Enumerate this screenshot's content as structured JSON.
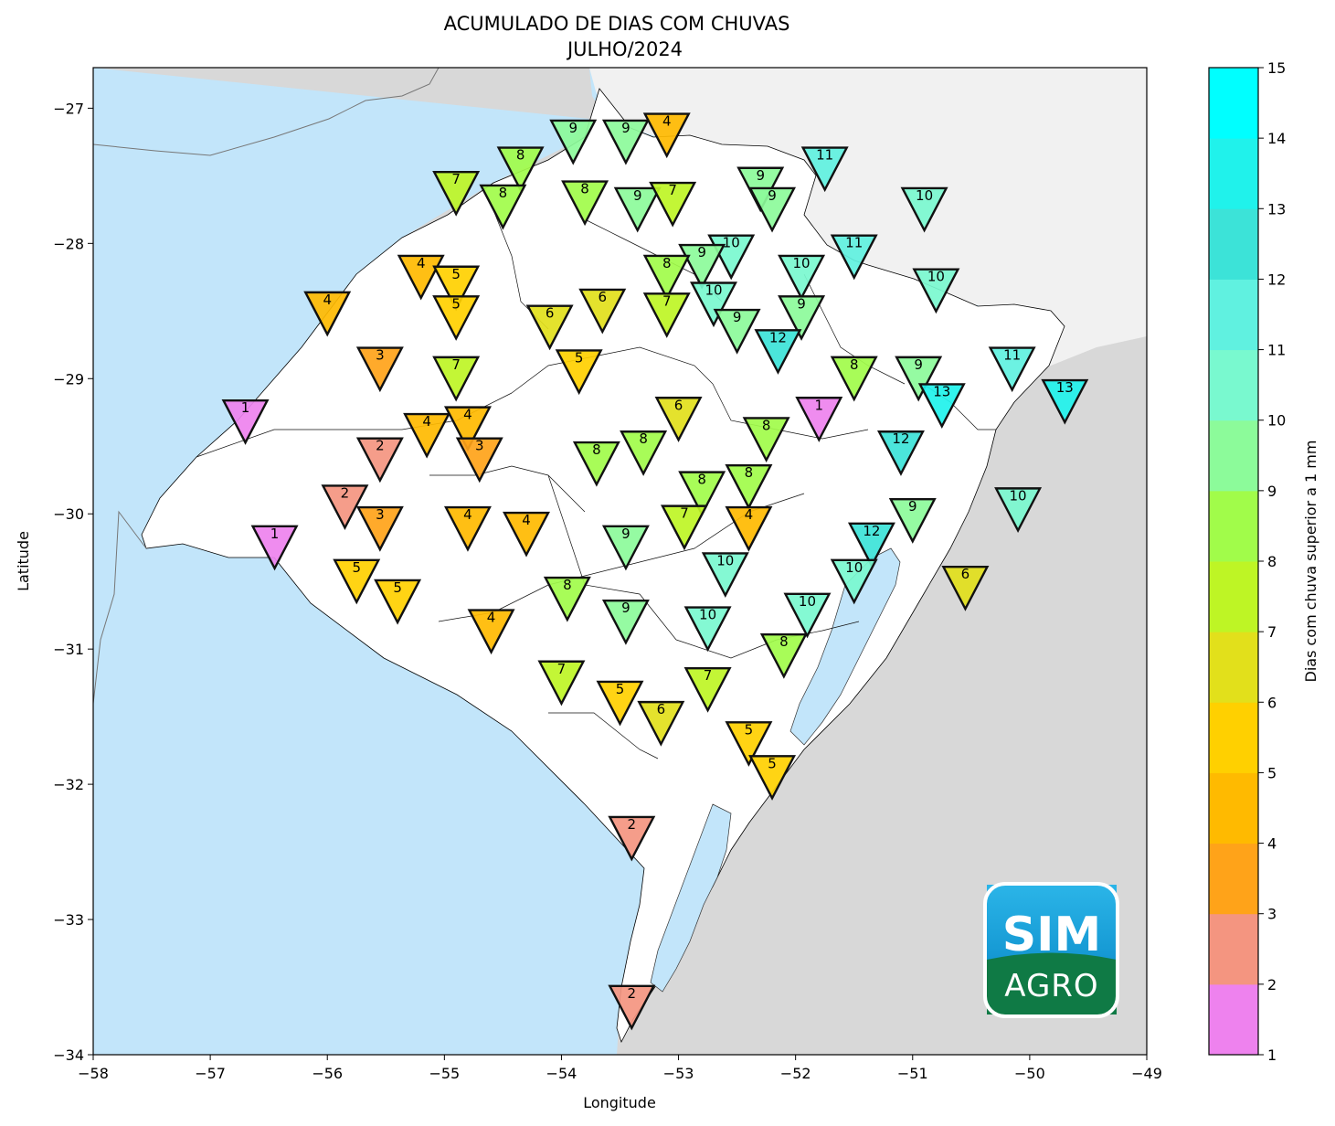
{
  "title": "ACUMULADO DE DIAS COM CHUVAS",
  "subtitle": "JULHO/2024",
  "colorbar_label": "Dias com chuva superior a 1 mm",
  "logo": {
    "line1": "SIM",
    "line2": "AGRO"
  },
  "colors": {
    "ocean": "#c2e5fa",
    "foreign_land": "#d8d8d8",
    "brazil_land": "#f1f1f1",
    "state_land": "#ffffff"
  },
  "chart_data": {
    "type": "scatter",
    "title": "ACUMULADO DE DIAS COM CHUVAS",
    "subtitle": "JULHO/2024",
    "xlabel": "Longitude",
    "ylabel": "Latitude",
    "xlim": [
      -58,
      -49
    ],
    "ylim": [
      -34,
      -26.7
    ],
    "xticks": [
      "−58",
      "−57",
      "−56",
      "−55",
      "−54",
      "−53",
      "−52",
      "−51",
      "−50",
      "−49"
    ],
    "yticks": [
      "−27",
      "−28",
      "−29",
      "−30",
      "−31",
      "−32",
      "−33",
      "−34"
    ],
    "colorbar": {
      "label": "Dias com chuva superior a 1 mm",
      "ticks": [
        "1",
        "2",
        "3",
        "4",
        "5",
        "6",
        "7",
        "8",
        "9",
        "10",
        "11",
        "12",
        "13",
        "14",
        "15"
      ],
      "colors": [
        "#ee82ee",
        "#f49580",
        "#ffa319",
        "#ffba00",
        "#ffd000",
        "#e2e01b",
        "#bef525",
        "#a1fc4a",
        "#8cfb9a",
        "#79f9cf",
        "#60f1e0",
        "#3ce3d8",
        "#20f2eb",
        "#00ffff"
      ]
    },
    "points": [
      {
        "lon": -53.9,
        "lat": -27.2,
        "value": 9
      },
      {
        "lon": -53.45,
        "lat": -27.2,
        "value": 9
      },
      {
        "lon": -53.1,
        "lat": -27.15,
        "value": 4
      },
      {
        "lon": -54.35,
        "lat": -27.4,
        "value": 8
      },
      {
        "lon": -51.75,
        "lat": -27.4,
        "value": 11
      },
      {
        "lon": -54.9,
        "lat": -27.58,
        "value": 7
      },
      {
        "lon": -54.5,
        "lat": -27.68,
        "value": 8
      },
      {
        "lon": -53.8,
        "lat": -27.65,
        "value": 8
      },
      {
        "lon": -53.35,
        "lat": -27.7,
        "value": 9
      },
      {
        "lon": -53.05,
        "lat": -27.66,
        "value": 7
      },
      {
        "lon": -52.3,
        "lat": -27.55,
        "value": 9
      },
      {
        "lon": -52.2,
        "lat": -27.7,
        "value": 9
      },
      {
        "lon": -50.9,
        "lat": -27.7,
        "value": 10
      },
      {
        "lon": -52.55,
        "lat": -28.05,
        "value": 10
      },
      {
        "lon": -52.8,
        "lat": -28.12,
        "value": 9
      },
      {
        "lon": -53.1,
        "lat": -28.2,
        "value": 8
      },
      {
        "lon": -51.5,
        "lat": -28.05,
        "value": 11
      },
      {
        "lon": -51.95,
        "lat": -28.2,
        "value": 10
      },
      {
        "lon": -50.8,
        "lat": -28.3,
        "value": 10
      },
      {
        "lon": -55.2,
        "lat": -28.2,
        "value": 4
      },
      {
        "lon": -54.9,
        "lat": -28.28,
        "value": 5
      },
      {
        "lon": -54.9,
        "lat": -28.5,
        "value": 5
      },
      {
        "lon": -56.0,
        "lat": -28.47,
        "value": 4
      },
      {
        "lon": -53.65,
        "lat": -28.45,
        "value": 6
      },
      {
        "lon": -54.1,
        "lat": -28.57,
        "value": 6
      },
      {
        "lon": -53.1,
        "lat": -28.48,
        "value": 7
      },
      {
        "lon": -52.7,
        "lat": -28.4,
        "value": 10
      },
      {
        "lon": -51.95,
        "lat": -28.5,
        "value": 9
      },
      {
        "lon": -52.5,
        "lat": -28.6,
        "value": 9
      },
      {
        "lon": -52.15,
        "lat": -28.75,
        "value": 12
      },
      {
        "lon": -55.55,
        "lat": -28.88,
        "value": 3
      },
      {
        "lon": -53.85,
        "lat": -28.9,
        "value": 5
      },
      {
        "lon": -54.9,
        "lat": -28.95,
        "value": 7
      },
      {
        "lon": -51.5,
        "lat": -28.95,
        "value": 8
      },
      {
        "lon": -50.95,
        "lat": -28.95,
        "value": 9
      },
      {
        "lon": -50.75,
        "lat": -29.15,
        "value": 13
      },
      {
        "lon": -50.15,
        "lat": -28.88,
        "value": 11
      },
      {
        "lon": -49.7,
        "lat": -29.12,
        "value": 13
      },
      {
        "lon": -56.7,
        "lat": -29.27,
        "value": 1
      },
      {
        "lon": -55.15,
        "lat": -29.37,
        "value": 4
      },
      {
        "lon": -54.8,
        "lat": -29.32,
        "value": 4
      },
      {
        "lon": -53.0,
        "lat": -29.25,
        "value": 6
      },
      {
        "lon": -51.8,
        "lat": -29.25,
        "value": 1
      },
      {
        "lon": -52.25,
        "lat": -29.4,
        "value": 8
      },
      {
        "lon": -54.7,
        "lat": -29.55,
        "value": 3
      },
      {
        "lon": -55.55,
        "lat": -29.55,
        "value": 2
      },
      {
        "lon": -53.3,
        "lat": -29.5,
        "value": 8
      },
      {
        "lon": -53.7,
        "lat": -29.58,
        "value": 8
      },
      {
        "lon": -51.1,
        "lat": -29.5,
        "value": 12
      },
      {
        "lon": -52.4,
        "lat": -29.75,
        "value": 8
      },
      {
        "lon": -52.8,
        "lat": -29.8,
        "value": 8
      },
      {
        "lon": -50.1,
        "lat": -29.92,
        "value": 10
      },
      {
        "lon": -55.85,
        "lat": -29.9,
        "value": 2
      },
      {
        "lon": -51.0,
        "lat": -30.0,
        "value": 9
      },
      {
        "lon": -52.95,
        "lat": -30.05,
        "value": 7
      },
      {
        "lon": -52.4,
        "lat": -30.06,
        "value": 4
      },
      {
        "lon": -55.55,
        "lat": -30.06,
        "value": 3
      },
      {
        "lon": -54.8,
        "lat": -30.06,
        "value": 4
      },
      {
        "lon": -54.3,
        "lat": -30.1,
        "value": 4
      },
      {
        "lon": -56.45,
        "lat": -30.2,
        "value": 1
      },
      {
        "lon": -53.45,
        "lat": -30.2,
        "value": 9
      },
      {
        "lon": -51.35,
        "lat": -30.18,
        "value": 12
      },
      {
        "lon": -55.75,
        "lat": -30.45,
        "value": 5
      },
      {
        "lon": -55.4,
        "lat": -30.6,
        "value": 5
      },
      {
        "lon": -52.6,
        "lat": -30.4,
        "value": 10
      },
      {
        "lon": -51.5,
        "lat": -30.45,
        "value": 10
      },
      {
        "lon": -50.55,
        "lat": -30.5,
        "value": 6
      },
      {
        "lon": -53.95,
        "lat": -30.58,
        "value": 8
      },
      {
        "lon": -51.9,
        "lat": -30.7,
        "value": 10
      },
      {
        "lon": -53.45,
        "lat": -30.75,
        "value": 9
      },
      {
        "lon": -52.75,
        "lat": -30.8,
        "value": 10
      },
      {
        "lon": -54.6,
        "lat": -30.82,
        "value": 4
      },
      {
        "lon": -52.1,
        "lat": -31.0,
        "value": 8
      },
      {
        "lon": -54.0,
        "lat": -31.2,
        "value": 7
      },
      {
        "lon": -52.75,
        "lat": -31.25,
        "value": 7
      },
      {
        "lon": -53.5,
        "lat": -31.35,
        "value": 5
      },
      {
        "lon": -53.15,
        "lat": -31.5,
        "value": 6
      },
      {
        "lon": -52.4,
        "lat": -31.65,
        "value": 5
      },
      {
        "lon": -52.2,
        "lat": -31.9,
        "value": 5
      },
      {
        "lon": -53.4,
        "lat": -32.35,
        "value": 2
      },
      {
        "lon": -53.4,
        "lat": -33.6,
        "value": 2
      }
    ]
  }
}
